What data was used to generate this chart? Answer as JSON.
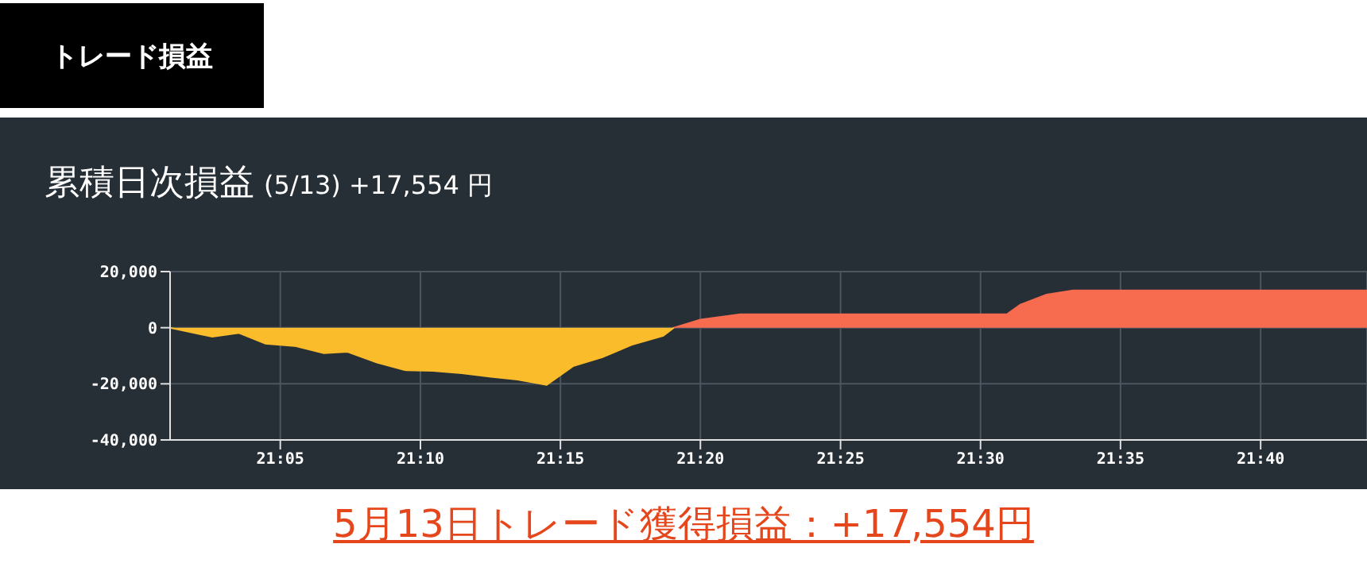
{
  "chart_data": {
    "type": "area",
    "title": "累積日次損益",
    "subtitle": "(5/13) +17,554 円",
    "annotations": [
      "トレード損益",
      "5月13日トレード獲得損益：+17,554円"
    ],
    "series": [
      {
        "color": "#fbbc2c",
        "x": [
          21.0177,
          21.0428,
          21.0587,
          21.0745,
          21.0918,
          21.1092,
          21.1233,
          21.1408,
          21.1582,
          21.174,
          21.1913,
          21.2087,
          21.2245,
          21.2418,
          21.2575,
          21.275,
          21.2923,
          21.3112,
          21.3175
        ],
        "values": [
          0,
          -3200,
          -1900,
          -5700,
          -6500,
          -9100,
          -8600,
          -12400,
          -15200,
          -15400,
          -16200,
          -17500,
          -18500,
          -20400,
          -13700,
          -10500,
          -6100,
          -2900,
          0
        ]
      },
      {
        "color": "#f76b4f",
        "x": [
          21.3175,
          21.3333,
          21.357,
          21.5157,
          21.5237,
          21.5393,
          21.555,
          21.73
        ],
        "values": [
          0,
          2900,
          4800,
          4800,
          8200,
          11800,
          13300,
          13300
        ]
      }
    ],
    "xlim": [
      21.0177,
      21.73
    ],
    "xticks": [
      {
        "value": 21.0833,
        "label": "21:05"
      },
      {
        "value": 21.1667,
        "label": "21:10"
      },
      {
        "value": 21.25,
        "label": "21:15"
      },
      {
        "value": 21.3333,
        "label": "21:20"
      },
      {
        "value": 21.4167,
        "label": "21:25"
      },
      {
        "value": 21.5,
        "label": "21:30"
      },
      {
        "value": 21.5833,
        "label": "21:35"
      },
      {
        "value": 21.6667,
        "label": "21:40"
      }
    ],
    "ylim": [
      -40000,
      20000
    ],
    "yticks": [
      {
        "value": 20000,
        "label": "20,000"
      },
      0,
      {
        "value": -20000,
        "label": "-20,000"
      },
      {
        "value": -40000,
        "label": "-40,000"
      }
    ],
    "grid": true
  }
}
